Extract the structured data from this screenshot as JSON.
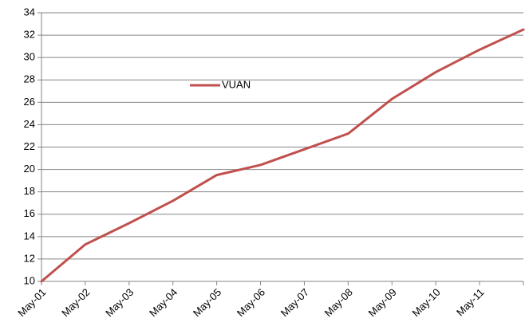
{
  "chart_data": {
    "type": "line",
    "categories": [
      "May-01",
      "May-02",
      "May-03",
      "May-04",
      "May-05",
      "May-06",
      "May-07",
      "May-08",
      "May-09",
      "May-10",
      "May-11",
      null
    ],
    "series": [
      {
        "name": "VUAN",
        "color": "#c0504d",
        "values": [
          10.0,
          13.3,
          15.2,
          17.2,
          19.5,
          20.4,
          21.8,
          23.2,
          26.3,
          28.7,
          30.7,
          32.5
        ]
      }
    ],
    "ylim": [
      10,
      34
    ],
    "yticks": [
      10,
      12,
      14,
      16,
      18,
      20,
      22,
      24,
      26,
      28,
      30,
      32,
      34
    ],
    "grid": true
  }
}
